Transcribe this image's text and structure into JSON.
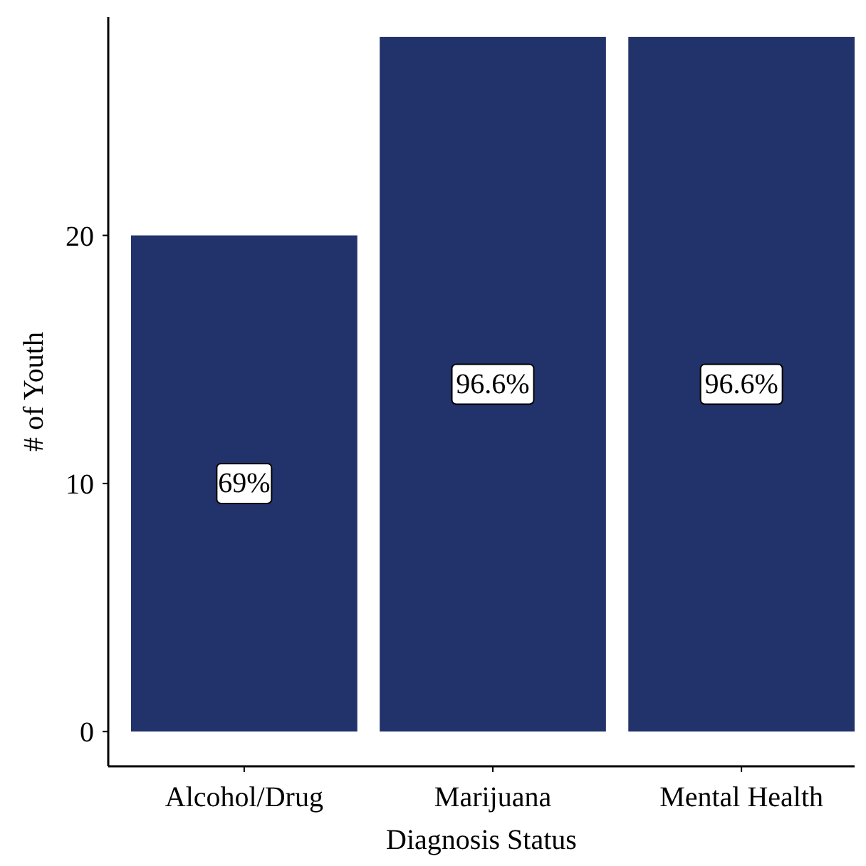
{
  "chart_data": {
    "type": "bar",
    "xlabel": "Diagnosis Status",
    "ylabel": "# of Youth",
    "categories": [
      "Alcohol/Drug",
      "Marijuana",
      "Mental Health"
    ],
    "values": [
      20,
      28,
      28
    ],
    "color": "#22336b",
    "annotations": [
      "69%",
      "96.6%",
      "96.6%"
    ],
    "ylim": [
      -1.4,
      28.8
    ],
    "yticks": [
      0,
      10,
      20
    ],
    "grid": false
  }
}
